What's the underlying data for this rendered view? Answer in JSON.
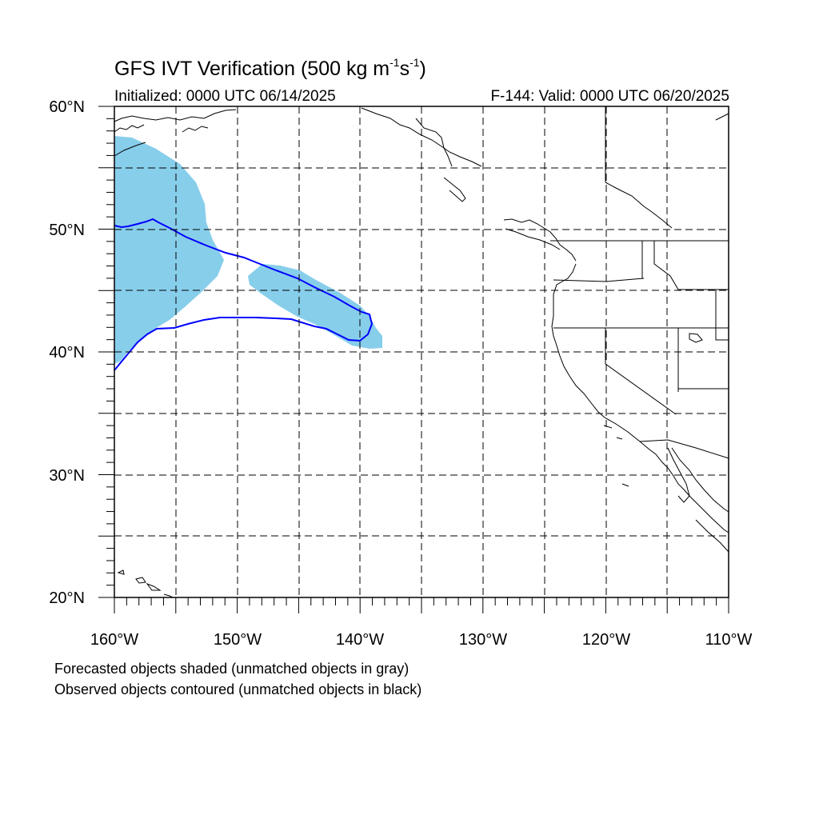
{
  "title": {
    "text": "GFS IVT Verification (500 kg m",
    "sup1": "-1",
    "mid": "s",
    "sup2": "-1",
    "tail": ")"
  },
  "initialized": "Initialized: 0000 UTC 06/14/2025",
  "valid": "F-144: Valid: 0000 UTC 06/20/2025",
  "legend": {
    "line1": "Forecasted objects shaded (unmatched objects in gray)",
    "line2": "Observed objects contoured (unmatched objects in black)"
  },
  "axes": {
    "lon_labels": [
      "160°W",
      "150°W",
      "140°W",
      "130°W",
      "120°W",
      "110°W"
    ],
    "lat_labels": [
      "20°N",
      "30°N",
      "40°N",
      "50°N",
      "60°N"
    ]
  },
  "colors": {
    "forecast_fill": "#87ceeb",
    "observed_contour": "#0000ff",
    "coastline": "#000000",
    "grid": "#000000"
  }
}
